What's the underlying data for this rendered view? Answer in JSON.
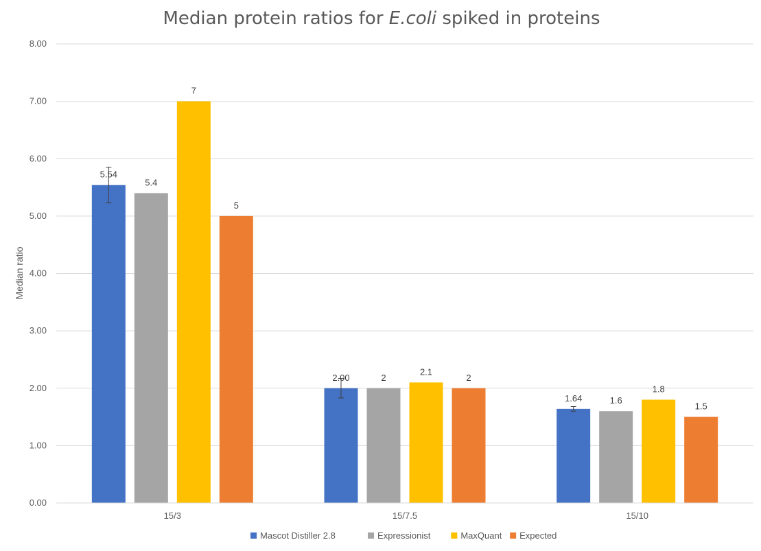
{
  "chart_data": {
    "type": "bar",
    "title": {
      "prefix": "Median protein ratios for ",
      "italic": "E.coli",
      "suffix": " spiked in proteins"
    },
    "xlabel": "",
    "ylabel": "Median ratio",
    "ylim": [
      0,
      8
    ],
    "y_ticks": [
      "0.00",
      "1.00",
      "2.00",
      "3.00",
      "4.00",
      "5.00",
      "6.00",
      "7.00",
      "8.00"
    ],
    "grid": true,
    "legend_position": "bottom",
    "categories": [
      "15/3",
      "15/7.5",
      "15/10"
    ],
    "series": [
      {
        "name": "Mascot Distiller 2.8",
        "color": "#4472C4",
        "values": [
          5.54,
          2.0,
          1.64
        ],
        "labels": [
          "5.54",
          "2.00",
          "1.64"
        ],
        "error": [
          0.31,
          0.17,
          0.04
        ]
      },
      {
        "name": "Expressionist",
        "color": "#A5A5A5",
        "values": [
          5.4,
          2,
          1.6
        ],
        "labels": [
          "5.4",
          "2",
          "1.6"
        ]
      },
      {
        "name": "MaxQuant",
        "color": "#FFC000",
        "values": [
          7,
          2.1,
          1.8
        ],
        "labels": [
          "7",
          "2.1",
          "1.8"
        ]
      },
      {
        "name": "Expected",
        "color": "#ED7D31",
        "values": [
          5,
          2,
          1.5
        ],
        "labels": [
          "5",
          "2",
          "1.5"
        ]
      }
    ]
  }
}
